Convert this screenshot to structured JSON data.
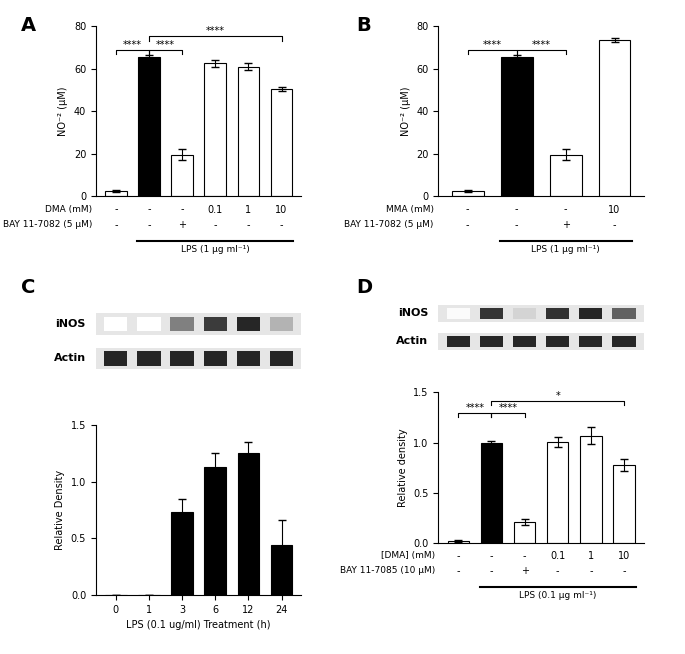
{
  "chart_data": [
    {
      "panel": "A",
      "type": "bar",
      "categories": [
        null,
        null,
        null,
        null,
        null,
        null
      ],
      "values": [
        2.5,
        65.5,
        19.5,
        62.5,
        61,
        50.5
      ],
      "errors": [
        0.5,
        1,
        2.5,
        1.5,
        1.5,
        1
      ],
      "colors": [
        "#ffffff",
        "#000000",
        "#ffffff",
        "#ffffff",
        "#ffffff",
        "#ffffff"
      ],
      "y_label": "NO⁻² (μM)",
      "ylim": [
        0,
        80
      ],
      "yticks": [
        0,
        20,
        40,
        60,
        80
      ],
      "conditions": [
        {
          "label": "DMA (mM)",
          "values": [
            "-",
            "-",
            "-",
            "0.1",
            "1",
            "10"
          ]
        },
        {
          "label": "BAY 11-7082 (5 μM)",
          "values": [
            "-",
            "-",
            "+",
            "-",
            "-",
            "-"
          ]
        }
      ],
      "treatment": {
        "label": "LPS (1 μg ml⁻¹)",
        "from": 1,
        "to": 5
      },
      "significance": [
        {
          "from": 0,
          "to": 1,
          "label": "****"
        },
        {
          "from": 1,
          "to": 2,
          "label": "****"
        },
        {
          "from": 1,
          "to": 5,
          "label": "****"
        }
      ]
    },
    {
      "panel": "B",
      "type": "bar",
      "categories": [
        null,
        null,
        null,
        null
      ],
      "values": [
        2.5,
        65.5,
        19.5,
        73.5
      ],
      "errors": [
        0.5,
        1,
        2.5,
        0.8
      ],
      "colors": [
        "#ffffff",
        "#000000",
        "#ffffff",
        "#ffffff"
      ],
      "y_label": "NO⁻² (μM)",
      "ylim": [
        0,
        80
      ],
      "yticks": [
        0,
        20,
        40,
        60,
        80
      ],
      "conditions": [
        {
          "label": "MMA (mM)",
          "values": [
            "-",
            "-",
            "-",
            "10"
          ]
        },
        {
          "label": "BAY 11-7082 (5 μM)",
          "values": [
            "-",
            "-",
            "+",
            "-"
          ]
        }
      ],
      "treatment": {
        "label": "LPS (1 μg ml⁻¹)",
        "from": 1,
        "to": 3
      },
      "significance": [
        {
          "from": 0,
          "to": 1,
          "label": "****"
        },
        {
          "from": 1,
          "to": 2,
          "label": "****"
        }
      ]
    },
    {
      "panel": "C",
      "type": "bar",
      "blot": [
        "iNOS",
        "Actin"
      ],
      "categories": [
        "0",
        "1",
        "3",
        "6",
        "12",
        "24"
      ],
      "values": [
        0,
        0,
        0.73,
        1.13,
        1.25,
        0.44
      ],
      "errors": [
        0,
        0,
        0.12,
        0.12,
        0.1,
        0.22
      ],
      "color": "#000000",
      "y_label": "Relative Density",
      "x_label": "LPS (0.1 ug/ml) Treatment (h)",
      "ylim": [
        0,
        1.5
      ],
      "yticks": [
        {
          "value": 0,
          "label": "0.0"
        },
        {
          "value": 0.5,
          "label": "0.5"
        },
        {
          "value": 1.0,
          "label": "1.0"
        },
        {
          "value": 1.5,
          "label": "1.5"
        }
      ]
    },
    {
      "panel": "D",
      "type": "bar",
      "blot": [
        "iNOS",
        "Actin"
      ],
      "categories": [
        null,
        null,
        null,
        null,
        null,
        null
      ],
      "values": [
        0.02,
        1.0,
        0.21,
        1.01,
        1.07,
        0.78
      ],
      "errors": [
        0.01,
        0.02,
        0.03,
        0.05,
        0.08,
        0.06
      ],
      "colors": [
        "#ffffff",
        "#000000",
        "#ffffff",
        "#ffffff",
        "#ffffff",
        "#ffffff"
      ],
      "y_label": "Relative density",
      "ylim": [
        0,
        1.5
      ],
      "yticks": [
        {
          "value": 0,
          "label": "0.0"
        },
        {
          "value": 0.5,
          "label": "0.5"
        },
        {
          "value": 1.0,
          "label": "1.0"
        },
        {
          "value": 1.5,
          "label": "1.5"
        }
      ],
      "conditions": [
        {
          "label": "[DMA] (mM)",
          "values": [
            "-",
            "-",
            "-",
            "0.1",
            "1",
            "10"
          ]
        },
        {
          "label": "BAY 11-7085 (10 μM)",
          "values": [
            "-",
            "-",
            "+",
            "-",
            "-",
            "-"
          ]
        }
      ],
      "treatment": {
        "label": "LPS (0.1 μg ml⁻¹)",
        "from": 1,
        "to": 5
      },
      "significance": [
        {
          "from": 0,
          "to": 1,
          "label": "****"
        },
        {
          "from": 1,
          "to": 2,
          "label": "****"
        },
        {
          "from": 1,
          "to": 5,
          "label": "*"
        }
      ]
    }
  ]
}
